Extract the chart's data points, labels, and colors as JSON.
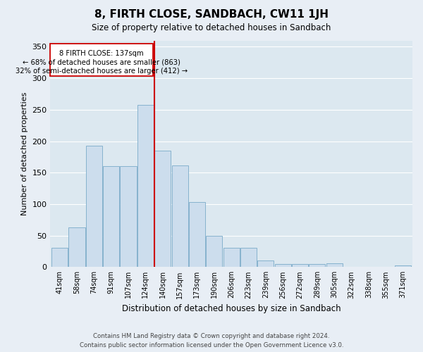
{
  "title": "8, FIRTH CLOSE, SANDBACH, CW11 1JH",
  "subtitle": "Size of property relative to detached houses in Sandbach",
  "xlabel": "Distribution of detached houses by size in Sandbach",
  "ylabel": "Number of detached properties",
  "bar_labels": [
    "41sqm",
    "58sqm",
    "74sqm",
    "91sqm",
    "107sqm",
    "124sqm",
    "140sqm",
    "157sqm",
    "173sqm",
    "190sqm",
    "206sqm",
    "223sqm",
    "239sqm",
    "256sqm",
    "272sqm",
    "289sqm",
    "305sqm",
    "322sqm",
    "338sqm",
    "355sqm",
    "371sqm"
  ],
  "bar_values": [
    30,
    63,
    193,
    160,
    160,
    258,
    185,
    161,
    103,
    50,
    31,
    31,
    10,
    5,
    5,
    5,
    6,
    0,
    0,
    0,
    3
  ],
  "bar_color": "#ccdded",
  "bar_edge_color": "#7aaac8",
  "reference_line_label": "8 FIRTH CLOSE: 137sqm",
  "annotation_line1": "← 68% of detached houses are smaller (863)",
  "annotation_line2": "32% of semi-detached houses are larger (412) →",
  "box_color": "#cc0000",
  "ylim": [
    0,
    360
  ],
  "yticks": [
    0,
    50,
    100,
    150,
    200,
    250,
    300,
    350
  ],
  "footer_line1": "Contains HM Land Registry data © Crown copyright and database right 2024.",
  "footer_line2": "Contains public sector information licensed under the Open Government Licence v3.0.",
  "background_color": "#e8eef5",
  "plot_bg_color": "#dce8f0"
}
